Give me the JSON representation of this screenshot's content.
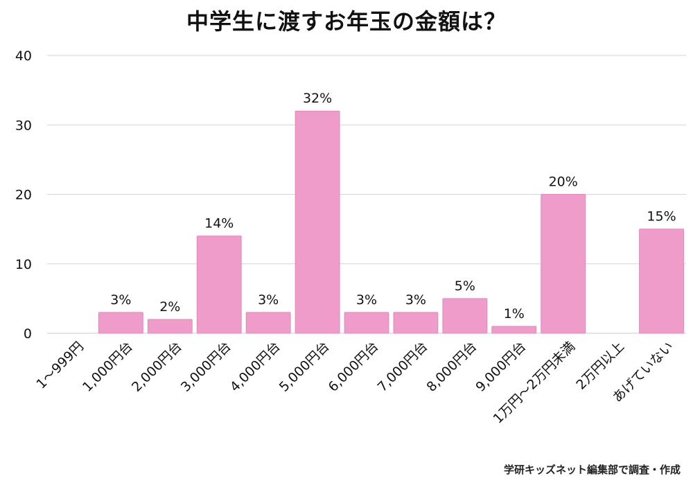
{
  "chart_data": {
    "type": "bar",
    "title": "中学生に渡すお年玉の金額は？",
    "categories": [
      "1〜999円",
      "1,000円台",
      "2,000円台",
      "3,000円台",
      "4,000円台",
      "5,000円台",
      "6,000円台",
      "7,000円台",
      "8,000円台",
      "9,000円台",
      "1万円〜2万円未満",
      "2万円以上",
      "あげていない"
    ],
    "values": [
      0,
      3,
      2,
      14,
      3,
      32,
      3,
      3,
      5,
      1,
      20,
      0,
      15
    ],
    "data_labels": [
      "",
      "3%",
      "2%",
      "14%",
      "3%",
      "32%",
      "3%",
      "3%",
      "5%",
      "1%",
      "20%",
      "",
      "15%"
    ],
    "y_ticks": [
      0,
      10,
      20,
      30,
      40
    ],
    "ylim": [
      0,
      40
    ],
    "xlabel": "",
    "ylabel": "",
    "grid": true,
    "bar_color": "#f09ccb",
    "grid_color": "#d4d4d4"
  },
  "credit": "学研キッズネット編集部で調査・作成"
}
